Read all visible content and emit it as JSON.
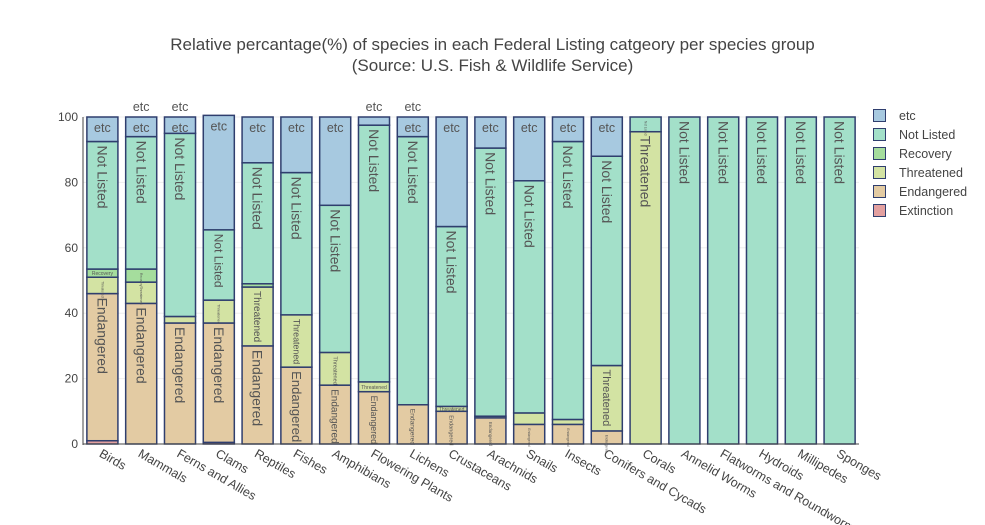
{
  "title_line1": "Relative percantage(%) of species in each Federal Listing catgeory per species group",
  "title_line2": "(Source: U.S. Fish & Wildlife Service)",
  "legend": [
    {
      "name": "etc",
      "color": "#a7c9e0"
    },
    {
      "name": "Not Listed",
      "color": "#a3e0c9"
    },
    {
      "name": "Recovery",
      "color": "#a5dd9d"
    },
    {
      "name": "Threatened",
      "color": "#d3e3a3"
    },
    {
      "name": "Endangered",
      "color": "#e3cba3"
    },
    {
      "name": "Extinction",
      "color": "#e3a0a0"
    }
  ],
  "chart_data": {
    "type": "bar",
    "stacked": true,
    "title": "Relative percantage(%) of species in each Federal Listing catgeory per species group (Source: U.S. Fish & Wildlife Service)",
    "xlabel": "",
    "ylabel": "",
    "ylim": [
      0,
      100
    ],
    "yticks": [
      0,
      20,
      40,
      60,
      80,
      100
    ],
    "legend_position": "right",
    "categories": [
      "Birds",
      "Mammals",
      "Ferns and Allies",
      "Clams",
      "Reptiles",
      "Fishes",
      "Amphibians",
      "Flowering Plants",
      "Lichens",
      "Crustaceans",
      "Arachnids",
      "Snails",
      "Insects",
      "Conifers and Cycads",
      "Corals",
      "Annelid Worms",
      "Flatworms and Roundworms",
      "Hydroids",
      "Millipedes",
      "Sponges"
    ],
    "series": [
      {
        "name": "Extinction",
        "color": "#e3a0a0",
        "values": [
          1,
          0,
          0,
          0.5,
          0,
          0,
          0,
          0,
          0,
          0,
          0,
          0,
          0,
          0,
          0,
          0,
          0,
          0,
          0,
          0
        ]
      },
      {
        "name": "Endangered",
        "color": "#e3cba3",
        "values": [
          45,
          43,
          37,
          36.5,
          30,
          23.5,
          18,
          16,
          12,
          10,
          8,
          6,
          6,
          4,
          0,
          0,
          0,
          0,
          0,
          0
        ]
      },
      {
        "name": "Threatened",
        "color": "#d3e3a3",
        "values": [
          5,
          6.5,
          2,
          7,
          18,
          16,
          10,
          3,
          0,
          1.5,
          0.5,
          3.5,
          1.5,
          20,
          95.5,
          0,
          0,
          0,
          0,
          0
        ]
      },
      {
        "name": "Recovery",
        "color": "#a5dd9d",
        "values": [
          2.5,
          4,
          0,
          0,
          1,
          0,
          0,
          0,
          0,
          0,
          0,
          0,
          0,
          0,
          0,
          0,
          0,
          0,
          0,
          0
        ]
      },
      {
        "name": "Not Listed",
        "color": "#a3e0c9",
        "values": [
          39,
          40.5,
          56,
          21.5,
          37,
          43.5,
          45,
          78.5,
          82,
          55,
          82,
          71,
          85,
          64,
          4.5,
          100,
          100,
          100,
          100,
          100
        ]
      },
      {
        "name": "etc",
        "color": "#a7c9e0",
        "values": [
          7.5,
          6,
          5,
          35,
          14,
          17,
          27,
          2.5,
          6,
          33.5,
          9.5,
          19.5,
          7.5,
          12,
          0,
          0,
          0,
          0,
          0,
          0
        ]
      }
    ],
    "bar_labels": {
      "etc": [
        "etc",
        "etc",
        "etc",
        "etc",
        "etc",
        "etc",
        "etc",
        "etc",
        "etc",
        "etc",
        "etc",
        "etc",
        "etc",
        "etc",
        "",
        "",
        "",
        "",
        "",
        ""
      ],
      "Not Listed": [
        "Not Listed",
        "Not Listed",
        "Not Listed",
        "Not Listed",
        "Not Listed",
        "Not Listed",
        "Not Listed",
        "Not Listed",
        "Not Listed",
        "Not Listed",
        "Not Listed",
        "Not Listed",
        "Not Listed",
        "Not Listed",
        "Not Listed",
        "Not Listed",
        "Not Listed",
        "Not Listed",
        "Not Listed",
        "Not Listed"
      ],
      "Recovery": [
        "Recovery",
        "Recovery",
        "",
        "",
        "",
        "",
        "",
        "",
        "",
        "",
        "",
        "",
        "",
        "",
        "",
        "",
        "",
        "",
        "",
        ""
      ],
      "Threatened": [
        "Threatened",
        "Threatened",
        "",
        "Threatened",
        "Threatened",
        "Threatened",
        "Threatened",
        "Threatened",
        "",
        "Threatened",
        "",
        "",
        "",
        "Threatened",
        "Threatened",
        "",
        "",
        "",
        "",
        ""
      ],
      "Endangered": [
        "Endangered",
        "Endangered",
        "Endangered",
        "Endangered",
        "Endangered",
        "Endangered",
        "Endangered",
        "Endangered",
        "Endangered",
        "Endangered",
        "Endangered",
        "Endangered",
        "Endangered",
        "Endangered",
        "",
        "",
        "",
        "",
        "",
        ""
      ]
    },
    "outside_labels": [
      "",
      "etc",
      "etc",
      "",
      "",
      "",
      "",
      "etc",
      "etc",
      "",
      "",
      "",
      "",
      "",
      "",
      "",
      "",
      "",
      "",
      ""
    ],
    "outside_label_text": "etc"
  }
}
